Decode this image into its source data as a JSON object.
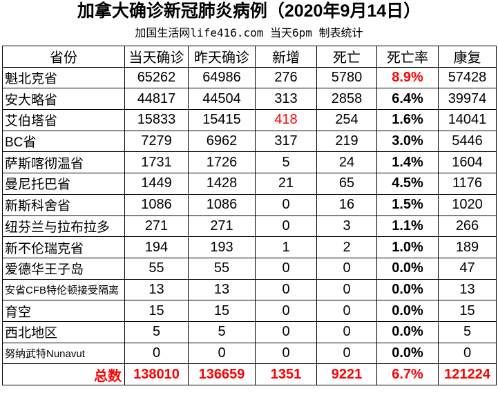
{
  "title": "加拿大确诊新冠肺炎病例（2020年9月14日）",
  "subtitle": "加国生活网life416.com 当天6pm 制表统计",
  "headers": [
    "省份",
    "当天确诊",
    "昨天确诊",
    "新增",
    "死亡",
    "死亡率",
    "康复"
  ],
  "rows": [
    [
      "魁北克省",
      "65262",
      "64986",
      "276",
      "5780",
      "8.9%",
      "57428"
    ],
    [
      "安大略省",
      "44817",
      "44504",
      "313",
      "2858",
      "6.4%",
      "39974"
    ],
    [
      "艾伯塔省",
      "15833",
      "15415",
      "418",
      "254",
      "1.6%",
      "14041"
    ],
    [
      "BC省",
      "7279",
      "6962",
      "317",
      "219",
      "3.0%",
      "5446"
    ],
    [
      "萨斯喀彻温省",
      "1731",
      "1726",
      "5",
      "24",
      "1.4%",
      "1604"
    ],
    [
      "曼尼托巴省",
      "1449",
      "1428",
      "21",
      "65",
      "4.5%",
      "1176"
    ],
    [
      "新斯科舍省",
      "1086",
      "1086",
      "0",
      "16",
      "1.5%",
      "1020"
    ],
    [
      "纽芬兰与拉布拉多",
      "271",
      "271",
      "0",
      "3",
      "1.1%",
      "266"
    ],
    [
      "新不伦瑞克省",
      "194",
      "193",
      "1",
      "2",
      "1.0%",
      "189"
    ],
    [
      "爱德华王子岛",
      "55",
      "55",
      "0",
      "0",
      "0.0%",
      "47"
    ],
    [
      "安省CFB特伦顿接受隔离",
      "13",
      "13",
      "0",
      "0",
      "0.0%",
      "13"
    ],
    [
      "育空",
      "15",
      "15",
      "0",
      "0",
      "0.0%",
      "15"
    ],
    [
      "西北地区",
      "5",
      "5",
      "0",
      "0",
      "0.0%",
      "5"
    ],
    [
      "努纳武特Nunavut",
      "0",
      "0",
      "0",
      "0",
      "0.0%",
      "0"
    ]
  ],
  "total": [
    "总数",
    "138010",
    "136659",
    "1351",
    "9221",
    "6.7%",
    "121224"
  ],
  "colors": {
    "highlight": "#ff0000"
  }
}
